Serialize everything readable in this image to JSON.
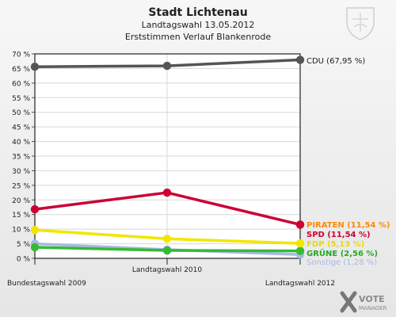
{
  "header": {
    "title": "Stadt Lichtenau",
    "subtitle1": "Landtagswahl 13.05.2012",
    "subtitle2": "Erststimmen Verlauf Blankenrode"
  },
  "logo": {
    "line1": "VOTE",
    "line2": "MANAGER",
    "icon": "x-vote-icon"
  },
  "crest": {
    "icon": "coat-of-arms-icon"
  },
  "chart_data": {
    "type": "line",
    "x": [
      "Bundestagswahl 2009",
      "Landtagswahl 2010",
      "Landtagswahl 2012"
    ],
    "ylim": [
      0,
      70
    ],
    "yticks": [
      "0 %",
      "5 %",
      "10 %",
      "15 %",
      "20 %",
      "25 %",
      "30 %",
      "35 %",
      "40 %",
      "45 %",
      "50 %",
      "55 %",
      "60 %",
      "65 %",
      "70 %"
    ],
    "grid": true,
    "series": [
      {
        "name": "CDU",
        "label": "CDU (67,95 %)",
        "color": "#555555",
        "label_color": "#222222",
        "values": [
          65.6,
          65.9,
          67.95
        ]
      },
      {
        "name": "SPD",
        "label": "SPD (11,54 %)",
        "color": "#cc0033",
        "label_color": "#cc0033",
        "values": [
          16.8,
          22.5,
          11.54
        ]
      },
      {
        "name": "PIRATEN",
        "label": "PIRATEN (11,54 %)",
        "color": "#ff8800",
        "label_color": "#ff8800",
        "values": [
          null,
          null,
          11.54
        ]
      },
      {
        "name": "FDP",
        "label": "FDP (5,13 %)",
        "color": "#f2e600",
        "label_color": "#e8dc00",
        "values": [
          9.7,
          6.7,
          5.13
        ]
      },
      {
        "name": "GRÜNE",
        "label": "GRÜNE (2,56 %)",
        "color": "#33bb33",
        "label_color": "#22aa22",
        "values": [
          3.8,
          2.7,
          2.56
        ]
      },
      {
        "name": "Sonstige",
        "label": "Sonstige (1,28 %)",
        "color": "#a9b8e6",
        "label_color": "#a9b8e6",
        "values": [
          5.0,
          3.0,
          1.28
        ]
      }
    ]
  }
}
